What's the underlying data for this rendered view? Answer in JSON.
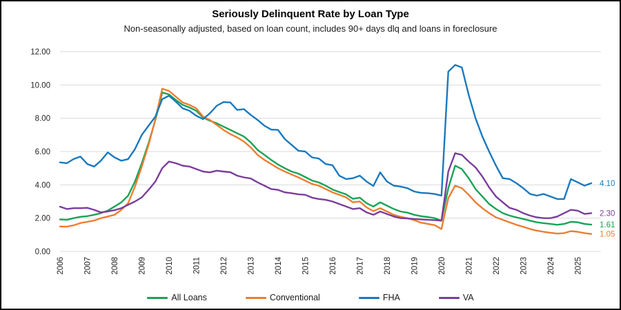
{
  "title": "Seriously Delinquent Rate by Loan Type",
  "subtitle": "Non-seasonally adjusted, based on loan count, includes 90+ days dlq and loans in foreclosure",
  "chart_data": {
    "type": "line",
    "title": "Seriously Delinquent Rate by Loan Type",
    "subtitle": "Non-seasonally adjusted, based on loan count, includes 90+ days dlq and loans in foreclosure",
    "x_unit": "quarter",
    "x_start": "2006Q1",
    "x_end": "2025Q3",
    "points_per_year": 4,
    "x_tick_labels": [
      "2006",
      "2007",
      "2008",
      "2009",
      "2010",
      "2011",
      "2012",
      "2013",
      "2014",
      "2015",
      "2016",
      "2017",
      "2018",
      "2019",
      "2020",
      "2021",
      "2022",
      "2023",
      "2024",
      "2025"
    ],
    "y_tick_labels": [
      "0.00",
      "2.00",
      "4.00",
      "6.00",
      "8.00",
      "10.00",
      "12.00"
    ],
    "ylim": [
      0,
      12
    ],
    "grid": "horizontal",
    "grid_color": "#d9d9d9",
    "legend_position": "bottom",
    "series": [
      {
        "name": "All Loans",
        "color": "#18a356",
        "end_label": "1.61",
        "values": [
          1.92,
          1.9,
          2.0,
          2.08,
          2.12,
          2.2,
          2.3,
          2.45,
          2.7,
          2.95,
          3.35,
          4.2,
          5.3,
          6.5,
          7.9,
          9.55,
          9.43,
          9.1,
          8.8,
          8.65,
          8.45,
          8.05,
          7.85,
          7.7,
          7.5,
          7.3,
          7.1,
          6.9,
          6.55,
          6.1,
          5.8,
          5.5,
          5.22,
          5.0,
          4.8,
          4.67,
          4.47,
          4.26,
          4.14,
          3.95,
          3.72,
          3.57,
          3.43,
          3.16,
          3.23,
          2.9,
          2.7,
          2.95,
          2.75,
          2.55,
          2.4,
          2.33,
          2.2,
          2.12,
          2.07,
          2.0,
          1.85,
          3.8,
          5.15,
          4.95,
          4.4,
          3.75,
          3.3,
          2.85,
          2.55,
          2.3,
          2.15,
          2.05,
          1.95,
          1.85,
          1.75,
          1.7,
          1.65,
          1.6,
          1.65,
          1.78,
          1.75,
          1.65,
          1.61
        ]
      },
      {
        "name": "Conventional",
        "color": "#ed7d31",
        "end_label": "1.05",
        "values": [
          1.5,
          1.49,
          1.57,
          1.71,
          1.78,
          1.86,
          2.0,
          2.1,
          2.2,
          2.5,
          2.9,
          3.9,
          5.1,
          6.4,
          7.95,
          9.78,
          9.64,
          9.3,
          8.95,
          8.8,
          8.6,
          8.1,
          7.9,
          7.6,
          7.3,
          7.05,
          6.85,
          6.6,
          6.25,
          5.8,
          5.5,
          5.25,
          5.0,
          4.8,
          4.62,
          4.45,
          4.25,
          4.05,
          3.95,
          3.75,
          3.55,
          3.4,
          3.25,
          2.95,
          3.0,
          2.65,
          2.42,
          2.6,
          2.4,
          2.2,
          2.08,
          2.0,
          1.88,
          1.73,
          1.65,
          1.58,
          1.35,
          3.2,
          3.95,
          3.8,
          3.4,
          2.95,
          2.6,
          2.3,
          2.05,
          1.9,
          1.75,
          1.6,
          1.48,
          1.35,
          1.25,
          1.18,
          1.12,
          1.07,
          1.1,
          1.22,
          1.18,
          1.1,
          1.05
        ]
      },
      {
        "name": "FHA",
        "color": "#1979bf",
        "end_label": "4.10",
        "values": [
          5.35,
          5.3,
          5.55,
          5.7,
          5.25,
          5.1,
          5.45,
          5.95,
          5.65,
          5.45,
          5.55,
          6.15,
          7.0,
          7.55,
          8.1,
          9.15,
          9.35,
          9.0,
          8.6,
          8.45,
          8.15,
          7.95,
          8.3,
          8.75,
          8.97,
          8.95,
          8.5,
          8.55,
          8.2,
          7.9,
          7.55,
          7.32,
          7.3,
          6.75,
          6.4,
          6.05,
          6.0,
          5.65,
          5.58,
          5.25,
          5.18,
          4.55,
          4.35,
          4.4,
          4.55,
          4.2,
          3.93,
          4.75,
          4.2,
          3.95,
          3.9,
          3.8,
          3.6,
          3.52,
          3.5,
          3.45,
          3.35,
          10.8,
          11.2,
          11.05,
          9.4,
          8.0,
          6.9,
          6.0,
          5.15,
          4.4,
          4.35,
          4.1,
          3.8,
          3.45,
          3.35,
          3.45,
          3.3,
          3.15,
          3.15,
          4.35,
          4.15,
          3.95,
          4.1
        ]
      },
      {
        "name": "VA",
        "color": "#7a3d9c",
        "end_label": "2.30",
        "values": [
          2.69,
          2.55,
          2.6,
          2.6,
          2.62,
          2.5,
          2.35,
          2.4,
          2.48,
          2.6,
          2.8,
          3.0,
          3.25,
          3.7,
          4.2,
          5.0,
          5.4,
          5.3,
          5.15,
          5.1,
          4.95,
          4.8,
          4.75,
          4.85,
          4.8,
          4.76,
          4.55,
          4.45,
          4.38,
          4.15,
          3.95,
          3.75,
          3.7,
          3.55,
          3.5,
          3.43,
          3.4,
          3.23,
          3.15,
          3.1,
          3.0,
          2.85,
          2.7,
          2.55,
          2.6,
          2.35,
          2.2,
          2.4,
          2.25,
          2.1,
          2.0,
          1.98,
          1.95,
          1.92,
          1.9,
          1.88,
          1.85,
          4.8,
          5.9,
          5.8,
          5.4,
          5.05,
          4.5,
          3.85,
          3.3,
          2.95,
          2.62,
          2.5,
          2.3,
          2.15,
          2.05,
          2.0,
          2.0,
          2.1,
          2.3,
          2.5,
          2.45,
          2.25,
          2.3
        ]
      }
    ]
  }
}
